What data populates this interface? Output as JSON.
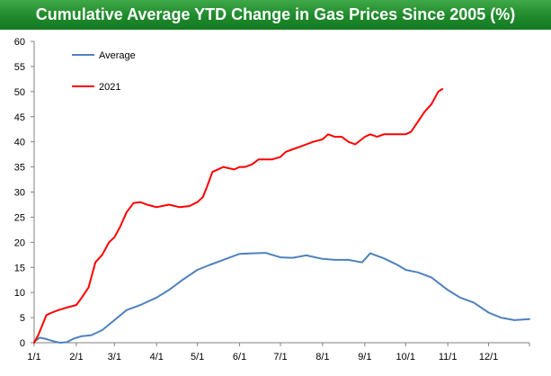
{
  "chart_data": {
    "type": "line",
    "title": "Cumulative Average YTD Change in Gas Prices Since 2005 (%)",
    "xlabel": "",
    "ylabel": "",
    "ylim": [
      0,
      60
    ],
    "yticks": [
      0,
      5,
      10,
      15,
      20,
      25,
      30,
      35,
      40,
      45,
      50,
      55,
      60
    ],
    "xlim": [
      "2021-01-01",
      "2021-12-31"
    ],
    "xticks": [
      "1/1",
      "2/1",
      "3/1",
      "4/1",
      "5/1",
      "6/1",
      "7/1",
      "8/1",
      "9/1",
      "10/1",
      "11/1",
      "12/1"
    ],
    "grid": false,
    "legend": "top-left",
    "series": [
      {
        "name": "Average",
        "color": "#4f81bd",
        "x": [
          "2021-01-01",
          "2021-01-05",
          "2021-01-09",
          "2021-01-15",
          "2021-01-20",
          "2021-01-25",
          "2021-01-30",
          "2021-02-05",
          "2021-02-12",
          "2021-02-20",
          "2021-03-01",
          "2021-03-10",
          "2021-03-20",
          "2021-04-01",
          "2021-04-10",
          "2021-04-20",
          "2021-05-01",
          "2021-05-10",
          "2021-05-20",
          "2021-06-01",
          "2021-06-10",
          "2021-06-20",
          "2021-07-01",
          "2021-07-10",
          "2021-07-20",
          "2021-08-01",
          "2021-08-10",
          "2021-08-20",
          "2021-08-30",
          "2021-09-05",
          "2021-09-15",
          "2021-09-25",
          "2021-10-01",
          "2021-10-10",
          "2021-10-20",
          "2021-11-01",
          "2021-11-10",
          "2021-11-20",
          "2021-12-01",
          "2021-12-10",
          "2021-12-20",
          "2021-12-31"
        ],
        "values": [
          0.2,
          1.0,
          0.8,
          0.3,
          0.0,
          0.1,
          0.8,
          1.3,
          1.5,
          2.5,
          4.5,
          6.5,
          7.5,
          9.0,
          10.5,
          12.5,
          14.5,
          15.5,
          16.5,
          17.7,
          17.8,
          17.9,
          17.0,
          16.9,
          17.4,
          16.7,
          16.5,
          16.5,
          16.0,
          17.8,
          16.8,
          15.5,
          14.5,
          14.0,
          13.0,
          10.5,
          9.0,
          8.0,
          6.0,
          5.0,
          4.5,
          4.7
        ]
      },
      {
        "name": "2021",
        "color": "#ff0000",
        "x": [
          "2021-01-01",
          "2021-01-04",
          "2021-01-07",
          "2021-01-10",
          "2021-01-14",
          "2021-01-19",
          "2021-01-25",
          "2021-02-01",
          "2021-02-05",
          "2021-02-10",
          "2021-02-15",
          "2021-02-20",
          "2021-02-25",
          "2021-03-01",
          "2021-03-05",
          "2021-03-10",
          "2021-03-15",
          "2021-03-20",
          "2021-03-25",
          "2021-04-01",
          "2021-04-10",
          "2021-04-18",
          "2021-04-25",
          "2021-05-01",
          "2021-05-05",
          "2021-05-08",
          "2021-05-12",
          "2021-05-20",
          "2021-05-28",
          "2021-06-01",
          "2021-06-05",
          "2021-06-10",
          "2021-06-15",
          "2021-06-20",
          "2021-06-25",
          "2021-07-01",
          "2021-07-05",
          "2021-07-10",
          "2021-07-15",
          "2021-07-20",
          "2021-07-25",
          "2021-08-01",
          "2021-08-05",
          "2021-08-10",
          "2021-08-15",
          "2021-08-20",
          "2021-08-25",
          "2021-09-01",
          "2021-09-05",
          "2021-09-10",
          "2021-09-15",
          "2021-09-20",
          "2021-09-25",
          "2021-10-01",
          "2021-10-05",
          "2021-10-10",
          "2021-10-15",
          "2021-10-20",
          "2021-10-25",
          "2021-10-28"
        ],
        "values": [
          0.0,
          1.5,
          3.5,
          5.5,
          6.0,
          6.5,
          7.0,
          7.5,
          9.0,
          11.0,
          16.0,
          17.5,
          20.0,
          21.0,
          23.0,
          26.0,
          27.8,
          28.0,
          27.5,
          27.0,
          27.5,
          27.0,
          27.2,
          28.0,
          29.0,
          31.0,
          34.0,
          35.0,
          34.5,
          35.0,
          35.0,
          35.5,
          36.5,
          36.5,
          36.5,
          37.0,
          38.0,
          38.5,
          39.0,
          39.5,
          40.0,
          40.5,
          41.5,
          41.0,
          41.0,
          40.0,
          39.5,
          41.0,
          41.5,
          41.0,
          41.5,
          41.5,
          41.5,
          41.5,
          42.0,
          44.0,
          46.0,
          47.5,
          50.0,
          50.5
        ]
      }
    ]
  }
}
